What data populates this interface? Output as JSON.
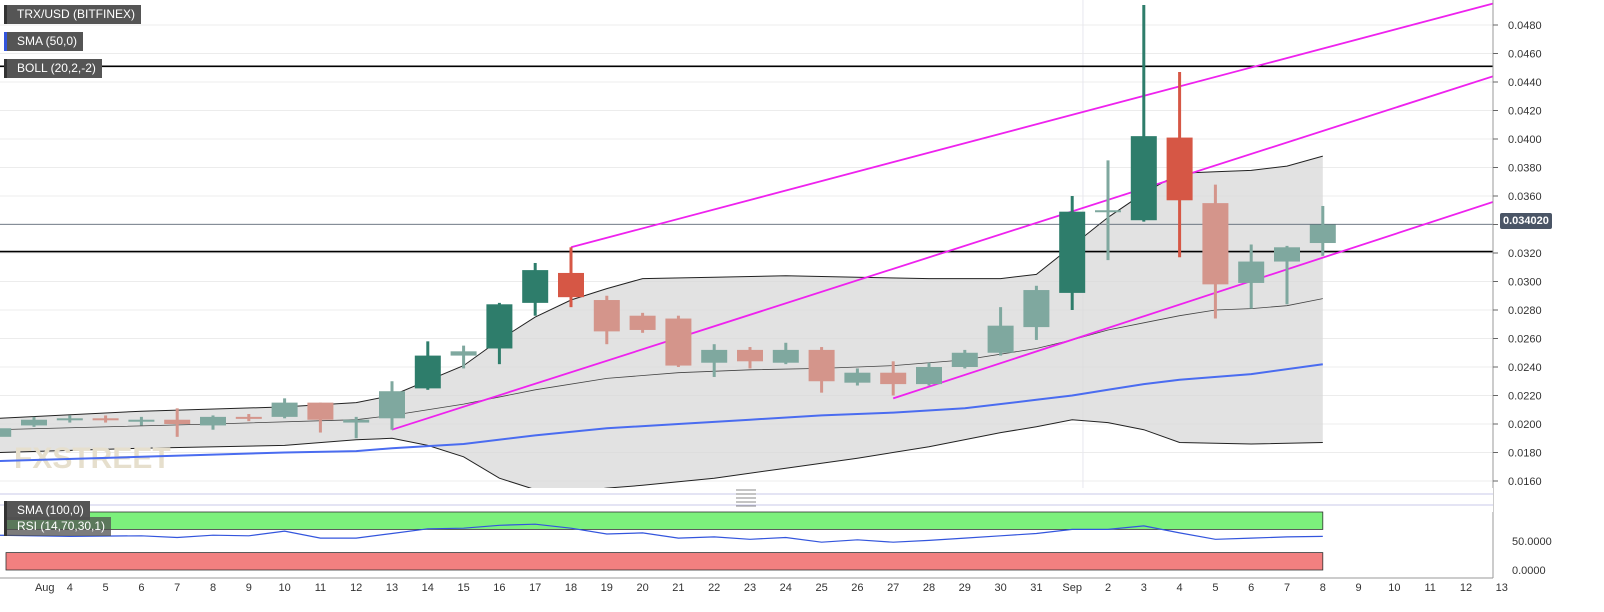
{
  "labels": {
    "symbol": "TRX/USD (BITFINEX)",
    "sma50": "SMA (50,0)",
    "boll": "BOLL (20,2,-2)",
    "sma100": "SMA (100,0)",
    "rsi": "RSI (14,70,30,1)"
  },
  "watermark": "FXSTREET",
  "colors": {
    "bull": "#2e7d6b",
    "bull_faded": "#7fa89f",
    "bear": "#d65745",
    "bear_faded": "#d4958b",
    "channel": "#ee22ee",
    "sma": "#4a6cf0",
    "band_fill": "#d8d8d8",
    "rsi_high": "#7cf07c",
    "rsi_low": "#f28080",
    "rsi_line": "#3355dd"
  },
  "chart_data": {
    "type": "candlestick",
    "y_ticks": [
      "0.0160",
      "0.0180",
      "0.0200",
      "0.0220",
      "0.0240",
      "0.0260",
      "0.0280",
      "0.0300",
      "0.0320",
      "0.0340",
      "0.0360",
      "0.0380",
      "0.0400",
      "0.0420",
      "0.0440",
      "0.0460",
      "0.0480"
    ],
    "x_ticks": [
      {
        "label": "Aug",
        "idx": 0.3
      },
      {
        "label": "4",
        "idx": 1
      },
      {
        "label": "5",
        "idx": 2
      },
      {
        "label": "6",
        "idx": 3
      },
      {
        "label": "7",
        "idx": 4
      },
      {
        "label": "8",
        "idx": 5
      },
      {
        "label": "9",
        "idx": 6
      },
      {
        "label": "10",
        "idx": 7
      },
      {
        "label": "11",
        "idx": 8
      },
      {
        "label": "12",
        "idx": 9
      },
      {
        "label": "13",
        "idx": 10
      },
      {
        "label": "14",
        "idx": 11
      },
      {
        "label": "15",
        "idx": 12
      },
      {
        "label": "16",
        "idx": 13
      },
      {
        "label": "17",
        "idx": 14
      },
      {
        "label": "18",
        "idx": 15
      },
      {
        "label": "19",
        "idx": 16
      },
      {
        "label": "20",
        "idx": 17
      },
      {
        "label": "21",
        "idx": 18
      },
      {
        "label": "22",
        "idx": 19
      },
      {
        "label": "23",
        "idx": 20
      },
      {
        "label": "24",
        "idx": 21
      },
      {
        "label": "25",
        "idx": 22
      },
      {
        "label": "26",
        "idx": 23
      },
      {
        "label": "27",
        "idx": 24
      },
      {
        "label": "28",
        "idx": 25
      },
      {
        "label": "29",
        "idx": 26
      },
      {
        "label": "30",
        "idx": 27
      },
      {
        "label": "31",
        "idx": 28
      },
      {
        "label": "Sep",
        "idx": 29
      },
      {
        "label": "2",
        "idx": 30
      },
      {
        "label": "3",
        "idx": 31
      },
      {
        "label": "4",
        "idx": 32
      },
      {
        "label": "5",
        "idx": 33
      },
      {
        "label": "6",
        "idx": 34
      },
      {
        "label": "7",
        "idx": 35
      },
      {
        "label": "8",
        "idx": 36
      },
      {
        "label": "9",
        "idx": 37
      },
      {
        "label": "10",
        "idx": 38
      },
      {
        "label": "11",
        "idx": 39
      },
      {
        "label": "12",
        "idx": 40
      },
      {
        "label": "13",
        "idx": 41
      }
    ],
    "y_range": [
      0.015,
      0.0495
    ],
    "current_price": "0.034020",
    "horizontal_levels": [
      0.0451,
      0.0321
    ],
    "candles": [
      {
        "i": -1,
        "o": 0.0191,
        "h": 0.0199,
        "l": 0.0189,
        "c": 0.0197
      },
      {
        "i": 0,
        "o": 0.0199,
        "h": 0.0205,
        "l": 0.0198,
        "c": 0.0203
      },
      {
        "i": 1,
        "o": 0.0203,
        "h": 0.0206,
        "l": 0.0201,
        "c": 0.0204
      },
      {
        "i": 2,
        "o": 0.0204,
        "h": 0.0206,
        "l": 0.0201,
        "c": 0.0203
      },
      {
        "i": 3,
        "o": 0.0203,
        "h": 0.0205,
        "l": 0.0199,
        "c": 0.0203
      },
      {
        "i": 4,
        "o": 0.0203,
        "h": 0.0211,
        "l": 0.0191,
        "c": 0.02
      },
      {
        "i": 5,
        "o": 0.0199,
        "h": 0.0206,
        "l": 0.0196,
        "c": 0.0205
      },
      {
        "i": 6,
        "o": 0.0205,
        "h": 0.0207,
        "l": 0.0202,
        "c": 0.0204
      },
      {
        "i": 7,
        "o": 0.0205,
        "h": 0.0218,
        "l": 0.0204,
        "c": 0.0215
      },
      {
        "i": 8,
        "o": 0.0215,
        "h": 0.0215,
        "l": 0.0194,
        "c": 0.0203
      },
      {
        "i": 9,
        "o": 0.0201,
        "h": 0.0205,
        "l": 0.019,
        "c": 0.0203
      },
      {
        "i": 10,
        "o": 0.0204,
        "h": 0.023,
        "l": 0.0196,
        "c": 0.0223
      },
      {
        "i": 11,
        "o": 0.0225,
        "h": 0.0258,
        "l": 0.0224,
        "c": 0.0248
      },
      {
        "i": 12,
        "o": 0.0248,
        "h": 0.0255,
        "l": 0.0239,
        "c": 0.0251
      },
      {
        "i": 13,
        "o": 0.0253,
        "h": 0.0285,
        "l": 0.0242,
        "c": 0.0284
      },
      {
        "i": 14,
        "o": 0.0285,
        "h": 0.0313,
        "l": 0.0276,
        "c": 0.0308
      },
      {
        "i": 15,
        "o": 0.0306,
        "h": 0.0324,
        "l": 0.0282,
        "c": 0.0289
      },
      {
        "i": 16,
        "o": 0.0287,
        "h": 0.029,
        "l": 0.0256,
        "c": 0.0265
      },
      {
        "i": 17,
        "o": 0.0276,
        "h": 0.0278,
        "l": 0.0264,
        "c": 0.0266
      },
      {
        "i": 18,
        "o": 0.0274,
        "h": 0.0276,
        "l": 0.024,
        "c": 0.0241
      },
      {
        "i": 19,
        "o": 0.0243,
        "h": 0.0256,
        "l": 0.0233,
        "c": 0.0252
      },
      {
        "i": 20,
        "o": 0.0252,
        "h": 0.0254,
        "l": 0.0239,
        "c": 0.0244
      },
      {
        "i": 21,
        "o": 0.0243,
        "h": 0.0257,
        "l": 0.0242,
        "c": 0.0252
      },
      {
        "i": 22,
        "o": 0.0252,
        "h": 0.0254,
        "l": 0.0222,
        "c": 0.023
      },
      {
        "i": 23,
        "o": 0.0229,
        "h": 0.0239,
        "l": 0.0227,
        "c": 0.0236
      },
      {
        "i": 24,
        "o": 0.0236,
        "h": 0.0244,
        "l": 0.022,
        "c": 0.0228
      },
      {
        "i": 25,
        "o": 0.0228,
        "h": 0.0243,
        "l": 0.0227,
        "c": 0.024
      },
      {
        "i": 26,
        "o": 0.024,
        "h": 0.0252,
        "l": 0.0239,
        "c": 0.025
      },
      {
        "i": 27,
        "o": 0.025,
        "h": 0.0282,
        "l": 0.0248,
        "c": 0.0269
      },
      {
        "i": 28,
        "o": 0.0268,
        "h": 0.0297,
        "l": 0.0259,
        "c": 0.0294
      },
      {
        "i": 29,
        "o": 0.0292,
        "h": 0.036,
        "l": 0.028,
        "c": 0.0349
      },
      {
        "i": 30,
        "o": 0.035,
        "h": 0.0385,
        "l": 0.0315,
        "c": 0.035
      },
      {
        "i": 31,
        "o": 0.0343,
        "h": 0.0494,
        "l": 0.0342,
        "c": 0.0402
      },
      {
        "i": 32,
        "o": 0.0401,
        "h": 0.0447,
        "l": 0.0317,
        "c": 0.0357
      },
      {
        "i": 33,
        "o": 0.0355,
        "h": 0.0368,
        "l": 0.0274,
        "c": 0.0298
      },
      {
        "i": 34,
        "o": 0.0299,
        "h": 0.0326,
        "l": 0.0281,
        "c": 0.0314
      },
      {
        "i": 35,
        "o": 0.0314,
        "h": 0.0325,
        "l": 0.0284,
        "c": 0.0324
      },
      {
        "i": 36,
        "o": 0.0327,
        "h": 0.0353,
        "l": 0.0318,
        "c": 0.034
      }
    ],
    "boll_upper": [
      [
        -1,
        0.0204
      ],
      [
        3,
        0.0209
      ],
      [
        7,
        0.0212
      ],
      [
        9,
        0.0215
      ],
      [
        10,
        0.022
      ],
      [
        12,
        0.0241
      ],
      [
        13,
        0.0259
      ],
      [
        14,
        0.0275
      ],
      [
        15,
        0.0287
      ],
      [
        16,
        0.0295
      ],
      [
        17,
        0.0302
      ],
      [
        19,
        0.0303
      ],
      [
        21,
        0.0304
      ],
      [
        23,
        0.0303
      ],
      [
        25,
        0.0302
      ],
      [
        27,
        0.0302
      ],
      [
        28,
        0.0305
      ],
      [
        29,
        0.0325
      ],
      [
        30,
        0.0345
      ],
      [
        31,
        0.0362
      ],
      [
        32,
        0.0376
      ],
      [
        33,
        0.0377
      ],
      [
        34,
        0.0378
      ],
      [
        35,
        0.0381
      ],
      [
        36,
        0.0388
      ]
    ],
    "boll_mid": [
      [
        -1,
        0.0196
      ],
      [
        5,
        0.02
      ],
      [
        9,
        0.0203
      ],
      [
        10,
        0.0206
      ],
      [
        12,
        0.0214
      ],
      [
        14,
        0.0224
      ],
      [
        16,
        0.0232
      ],
      [
        18,
        0.0236
      ],
      [
        20,
        0.0238
      ],
      [
        22,
        0.0239
      ],
      [
        24,
        0.0241
      ],
      [
        26,
        0.0245
      ],
      [
        28,
        0.0253
      ],
      [
        29,
        0.0259
      ],
      [
        30,
        0.0266
      ],
      [
        31,
        0.0271
      ],
      [
        32,
        0.0276
      ],
      [
        33,
        0.028
      ],
      [
        34,
        0.0281
      ],
      [
        35,
        0.0283
      ],
      [
        36,
        0.0288
      ]
    ],
    "boll_lower": [
      [
        -1,
        0.018
      ],
      [
        3,
        0.0183
      ],
      [
        7,
        0.0185
      ],
      [
        9,
        0.0189
      ],
      [
        10,
        0.019
      ],
      [
        11,
        0.0185
      ],
      [
        12,
        0.0177
      ],
      [
        13,
        0.0162
      ],
      [
        14,
        0.0154
      ],
      [
        15,
        0.0152
      ],
      [
        16,
        0.0155
      ],
      [
        17,
        0.0157
      ],
      [
        19,
        0.0162
      ],
      [
        21,
        0.0169
      ],
      [
        23,
        0.0176
      ],
      [
        25,
        0.0184
      ],
      [
        27,
        0.0194
      ],
      [
        28,
        0.0198
      ],
      [
        29,
        0.0203
      ],
      [
        30,
        0.0201
      ],
      [
        31,
        0.0196
      ],
      [
        32,
        0.0187
      ],
      [
        34,
        0.0186
      ],
      [
        36,
        0.0187
      ]
    ],
    "sma50": [
      [
        -1,
        0.0174
      ],
      [
        3,
        0.0177
      ],
      [
        7,
        0.018
      ],
      [
        9,
        0.0181
      ],
      [
        10,
        0.0183
      ],
      [
        12,
        0.0186
      ],
      [
        14,
        0.0192
      ],
      [
        16,
        0.0197
      ],
      [
        18,
        0.02
      ],
      [
        20,
        0.0203
      ],
      [
        22,
        0.0206
      ],
      [
        24,
        0.0208
      ],
      [
        26,
        0.0211
      ],
      [
        28,
        0.0217
      ],
      [
        29,
        0.022
      ],
      [
        30,
        0.0224
      ],
      [
        31,
        0.0228
      ],
      [
        32,
        0.0231
      ],
      [
        34,
        0.0235
      ],
      [
        36,
        0.0242
      ]
    ],
    "channel_lines": [
      {
        "x1": 15,
        "y1": 0.0324,
        "x2": 41.5,
        "y2": 0.05
      },
      {
        "x1": 10,
        "y1": 0.0196,
        "x2": 41.5,
        "y2": 0.045
      },
      {
        "x1": 24,
        "y1": 0.0218,
        "x2": 41.5,
        "y2": 0.0362
      }
    ],
    "rsi": {
      "ticks": [
        "50.0000",
        "0.0000"
      ],
      "range": [
        0,
        100
      ],
      "line": [
        [
          -1,
          60
        ],
        [
          1,
          58
        ],
        [
          3,
          59
        ],
        [
          4,
          56
        ],
        [
          5,
          60
        ],
        [
          6,
          59
        ],
        [
          7,
          67
        ],
        [
          8,
          55
        ],
        [
          9,
          55
        ],
        [
          10,
          63
        ],
        [
          11,
          71
        ],
        [
          12,
          72
        ],
        [
          13,
          77
        ],
        [
          14,
          79
        ],
        [
          15,
          72
        ],
        [
          16,
          62
        ],
        [
          17,
          64
        ],
        [
          18,
          55
        ],
        [
          19,
          57
        ],
        [
          20,
          53
        ],
        [
          21,
          56
        ],
        [
          22,
          48
        ],
        [
          23,
          52
        ],
        [
          24,
          48
        ],
        [
          25,
          51
        ],
        [
          26,
          55
        ],
        [
          27,
          59
        ],
        [
          28,
          63
        ],
        [
          29,
          70
        ],
        [
          30,
          70
        ],
        [
          31,
          76
        ],
        [
          32,
          64
        ],
        [
          33,
          53
        ],
        [
          34,
          55
        ],
        [
          35,
          57
        ],
        [
          36,
          58
        ]
      ]
    }
  }
}
